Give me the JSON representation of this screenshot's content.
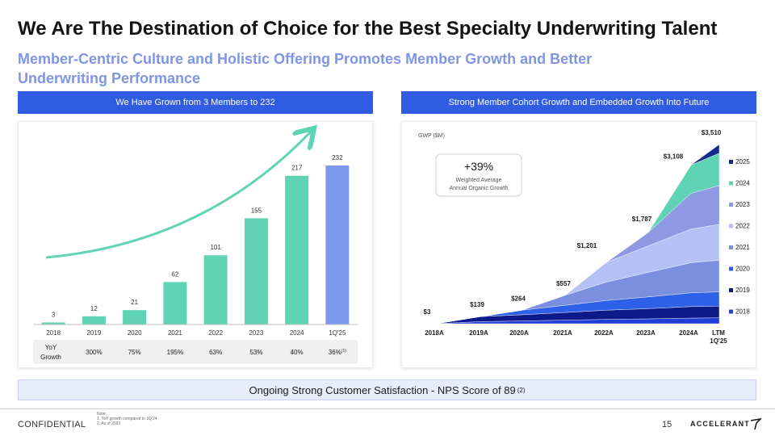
{
  "header": {
    "title": "We Are The Destination of Choice for the Best Specialty Underwriting Talent",
    "subtitle": "Member-Centric Culture and Holistic Offering Promotes Member Growth and Better Underwriting Performance"
  },
  "left_panel": {
    "header": "We Have Grown from 3 Members to 232",
    "yoy_label": "YoY Growth",
    "yoy_values": [
      "",
      "300%",
      "75%",
      "195%",
      "63%",
      "53%",
      "40%",
      "36%"
    ],
    "yoy_footnote": "(1)"
  },
  "right_panel": {
    "header": "Strong Member Cohort Growth and Embedded Growth Into Future",
    "unit_label": "GWP ($M)",
    "callout_value": "+39%",
    "callout_line1": "Weighted Average",
    "callout_line2": "Annual Organic Growth"
  },
  "nps": {
    "text": "Ongoing Strong Customer Satisfaction - NPS Score of 89",
    "footnote": "(2)"
  },
  "footer": {
    "confidential": "CONFIDENTIAL",
    "note_title": "Note:",
    "note_1": "1.  YoY growth compared to 1Q'24",
    "note_2": "2.  As of 2023",
    "page_number": "15",
    "logo_text": "ACCELERANT"
  },
  "colors": {
    "bar_teal": "#5fd3b4",
    "bar_blue": "#7b97ee",
    "arrow_teal": "#5fd3b4",
    "header_blue": "#2f5ce0",
    "subtitle_blue": "#7f95e6"
  },
  "chart_data": [
    {
      "type": "bar",
      "categories": [
        "2018",
        "2019",
        "2020",
        "2021",
        "2022",
        "2023",
        "2024",
        "1Q'25"
      ],
      "values": [
        3,
        12,
        21,
        62,
        101,
        155,
        217,
        232
      ],
      "bar_colors": [
        "#5fd3b4",
        "#5fd3b4",
        "#5fd3b4",
        "#5fd3b4",
        "#5fd3b4",
        "#5fd3b4",
        "#5fd3b4",
        "#7b97ee"
      ],
      "ylim": [
        0,
        232
      ]
    },
    {
      "type": "area",
      "stacked": true,
      "x": [
        "2018A",
        "2019A",
        "2020A",
        "2021A",
        "2022A",
        "2023A",
        "2024A",
        "LTM 1Q'25"
      ],
      "totals": [
        3,
        139,
        264,
        557,
        1201,
        1787,
        3108,
        3510
      ],
      "total_labels": [
        "$3",
        "$139",
        "$264",
        "$557",
        "$1,201",
        "$1,787",
        "$3,108",
        "$3,510"
      ],
      "ylim": [
        0,
        3510
      ],
      "legend_position": "right",
      "series": [
        {
          "name": "2018",
          "color": "#1f3fd6",
          "values": [
            3,
            40,
            55,
            70,
            85,
            95,
            110,
            115
          ]
        },
        {
          "name": "2019",
          "color": "#0e1a8a",
          "values": [
            0,
            99,
            120,
            150,
            180,
            200,
            225,
            230
          ]
        },
        {
          "name": "2020",
          "color": "#2f60e8",
          "values": [
            0,
            0,
            89,
            140,
            190,
            230,
            270,
            280
          ]
        },
        {
          "name": "2021",
          "color": "#7a8fe0",
          "values": [
            0,
            0,
            0,
            197,
            360,
            480,
            590,
            620
          ]
        },
        {
          "name": "2022",
          "color": "#b3c1f5",
          "values": [
            0,
            0,
            0,
            0,
            386,
            520,
            660,
            700
          ]
        },
        {
          "name": "2023",
          "color": "#8e98e3",
          "values": [
            0,
            0,
            0,
            0,
            0,
            262,
            700,
            760
          ]
        },
        {
          "name": "2024",
          "color": "#5fd3b4",
          "values": [
            0,
            0,
            0,
            0,
            0,
            0,
            553,
            635
          ]
        },
        {
          "name": "2025",
          "color": "#152a8a",
          "values": [
            0,
            0,
            0,
            0,
            0,
            0,
            0,
            170
          ]
        }
      ]
    }
  ]
}
